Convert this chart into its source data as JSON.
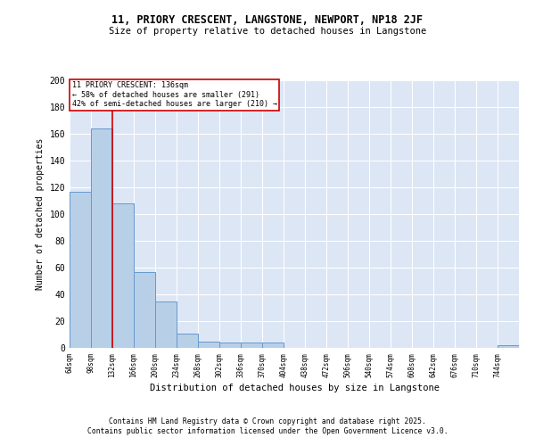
{
  "title": "11, PRIORY CRESCENT, LANGSTONE, NEWPORT, NP18 2JF",
  "subtitle": "Size of property relative to detached houses in Langstone",
  "xlabel": "Distribution of detached houses by size in Langstone",
  "ylabel": "Number of detached properties",
  "categories": [
    "64sqm",
    "98sqm",
    "132sqm",
    "166sqm",
    "200sqm",
    "234sqm",
    "268sqm",
    "302sqm",
    "336sqm",
    "370sqm",
    "404sqm",
    "438sqm",
    "472sqm",
    "506sqm",
    "540sqm",
    "574sqm",
    "608sqm",
    "642sqm",
    "676sqm",
    "710sqm",
    "744sqm"
  ],
  "values": [
    117,
    164,
    108,
    57,
    35,
    11,
    5,
    4,
    4,
    4,
    0,
    0,
    0,
    0,
    0,
    0,
    0,
    0,
    0,
    0,
    2
  ],
  "bar_color": "#b8cfe8",
  "bar_edge_color": "#6699cc",
  "background_color": "#dce6f5",
  "grid_color": "#ffffff",
  "annotation_text": "11 PRIORY CRESCENT: 136sqm\n← 58% of detached houses are smaller (291)\n42% of semi-detached houses are larger (210) →",
  "annotation_box_color": "#ffffff",
  "annotation_box_edge": "#cc0000",
  "vline_color": "#cc0000",
  "ylim": [
    0,
    200
  ],
  "yticks": [
    0,
    20,
    40,
    60,
    80,
    100,
    120,
    140,
    160,
    180,
    200
  ],
  "footer_line1": "Contains HM Land Registry data © Crown copyright and database right 2025.",
  "footer_line2": "Contains public sector information licensed under the Open Government Licence v3.0.",
  "bin_width": 34
}
